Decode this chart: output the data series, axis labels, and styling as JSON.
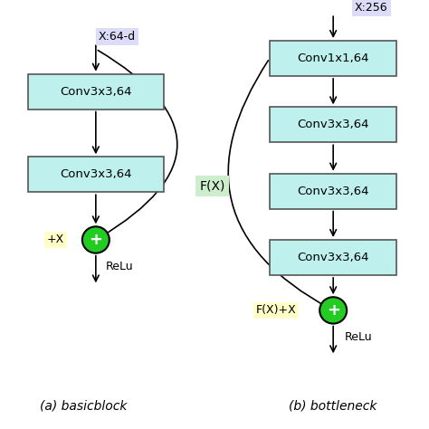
{
  "bg_color": "#ffffff",
  "box_facecolor": "#bef0ee",
  "box_edgecolor": "#555555",
  "circle_facecolor": "#22cc22",
  "circle_edgecolor": "#000000",
  "label_bg_lavender": "#dcdcf8",
  "label_bg_yellow": "#ffffc8",
  "label_bg_green": "#cceecc",
  "left_blocks": [
    "Conv3x3,64",
    "Conv3x3,64"
  ],
  "right_blocks": [
    "Conv1x1,64",
    "Conv3x3,64",
    "Conv3x3,64",
    "Conv3x3,64"
  ],
  "left_input_label": "X:64-d",
  "right_input_label": "X:256",
  "left_sum_label": "+X",
  "right_sum_label": "F(X)+X",
  "fx_label": "F(X)",
  "relu_label": "ReLu",
  "caption_left": "(a) basicblock",
  "caption_right": "(b) bottleneck",
  "figsize": [
    4.74,
    4.74
  ],
  "dpi": 100
}
